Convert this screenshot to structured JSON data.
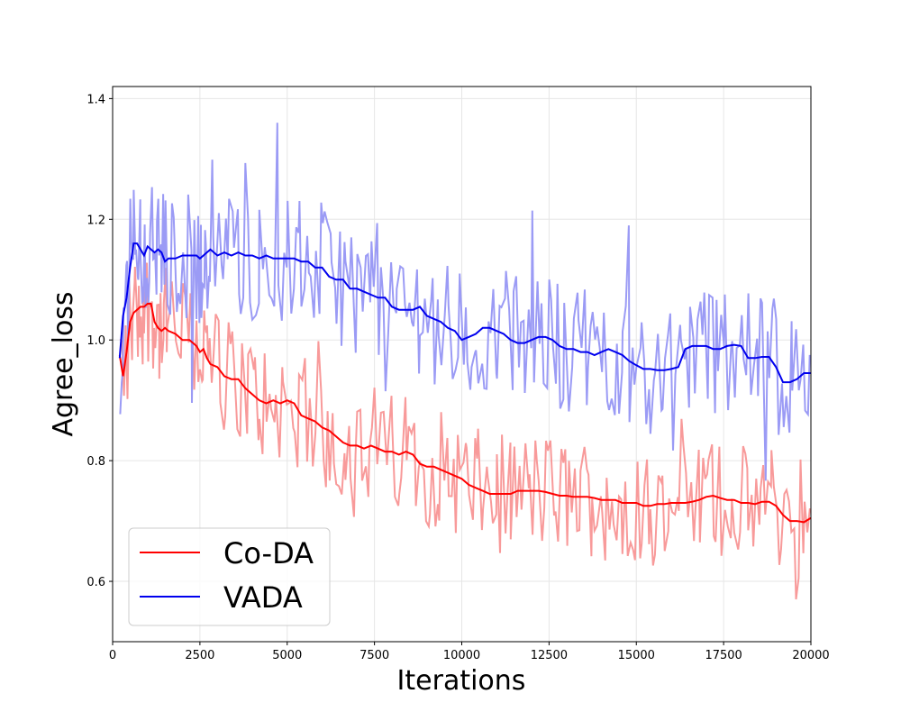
{
  "chart_data": {
    "type": "line",
    "title": "",
    "xlabel": "Iterations",
    "ylabel": "Agree_loss",
    "xlim": [
      0,
      20000
    ],
    "ylim": [
      0.5,
      1.42
    ],
    "xticks": [
      0,
      2500,
      5000,
      7500,
      10000,
      12500,
      15000,
      17500,
      20000
    ],
    "yticks": [
      0.6,
      0.8,
      1.0,
      1.2,
      1.4
    ],
    "xtick_labels": [
      "0",
      "2500",
      "5000",
      "7500",
      "10000",
      "12500",
      "15000",
      "17500",
      "20000"
    ],
    "ytick_labels": [
      "0.6",
      "0.8",
      "1.0",
      "1.2",
      "1.4"
    ],
    "grid": true,
    "legend": {
      "placement": "lower-left",
      "entries": [
        "Co-DA",
        "VADA"
      ]
    },
    "colors": {
      "coda": "#ff0000",
      "coda_raw": "#f89a9a",
      "vada": "#0000ee",
      "vada_raw": "#9b9bf5"
    },
    "series": [
      {
        "name": "Co-DA",
        "x": [
          200,
          300,
          400,
          500,
          600,
          700,
          800,
          900,
          1000,
          1100,
          1200,
          1300,
          1400,
          1500,
          1600,
          1800,
          2000,
          2200,
          2400,
          2500,
          2600,
          2700,
          2800,
          3000,
          3200,
          3400,
          3600,
          3800,
          4000,
          4200,
          4400,
          4600,
          4800,
          5000,
          5200,
          5400,
          5600,
          5800,
          6000,
          6200,
          6400,
          6600,
          6800,
          7000,
          7200,
          7400,
          7600,
          7800,
          8000,
          8200,
          8400,
          8600,
          8800,
          9000,
          9200,
          9400,
          9600,
          9800,
          10000,
          10200,
          10400,
          10600,
          10800,
          11000,
          11200,
          11400,
          11600,
          11800,
          12000,
          12200,
          12400,
          12600,
          12800,
          13000,
          13200,
          13400,
          13600,
          13800,
          14000,
          14200,
          14400,
          14600,
          14800,
          15000,
          15200,
          15400,
          15600,
          15800,
          16000,
          16200,
          16400,
          16600,
          16800,
          17000,
          17200,
          17400,
          17600,
          17800,
          18000,
          18200,
          18400,
          18600,
          18800,
          19000,
          19200,
          19400,
          19600,
          19800,
          20000
        ],
        "values": [
          0.975,
          0.94,
          0.98,
          1.03,
          1.045,
          1.05,
          1.055,
          1.055,
          1.06,
          1.06,
          1.03,
          1.02,
          1.015,
          1.02,
          1.015,
          1.01,
          1.0,
          1.0,
          0.99,
          0.98,
          0.985,
          0.97,
          0.96,
          0.955,
          0.94,
          0.935,
          0.935,
          0.92,
          0.91,
          0.9,
          0.895,
          0.9,
          0.895,
          0.9,
          0.895,
          0.875,
          0.87,
          0.865,
          0.855,
          0.85,
          0.84,
          0.83,
          0.825,
          0.825,
          0.82,
          0.825,
          0.82,
          0.815,
          0.815,
          0.81,
          0.815,
          0.81,
          0.795,
          0.79,
          0.79,
          0.785,
          0.78,
          0.775,
          0.77,
          0.76,
          0.755,
          0.75,
          0.745,
          0.745,
          0.745,
          0.745,
          0.75,
          0.75,
          0.75,
          0.75,
          0.748,
          0.745,
          0.742,
          0.742,
          0.74,
          0.74,
          0.74,
          0.738,
          0.735,
          0.735,
          0.735,
          0.73,
          0.73,
          0.73,
          0.725,
          0.725,
          0.728,
          0.728,
          0.73,
          0.73,
          0.73,
          0.732,
          0.735,
          0.74,
          0.742,
          0.738,
          0.735,
          0.735,
          0.73,
          0.73,
          0.728,
          0.732,
          0.732,
          0.725,
          0.71,
          0.7,
          0.7,
          0.698,
          0.705
        ]
      },
      {
        "name": "VADA",
        "x": [
          200,
          300,
          400,
          500,
          600,
          700,
          800,
          900,
          1000,
          1100,
          1200,
          1300,
          1400,
          1500,
          1600,
          1800,
          2000,
          2200,
          2400,
          2500,
          2600,
          2700,
          2800,
          3000,
          3200,
          3400,
          3600,
          3800,
          4000,
          4200,
          4400,
          4600,
          4800,
          5000,
          5200,
          5400,
          5600,
          5800,
          6000,
          6200,
          6400,
          6600,
          6800,
          7000,
          7200,
          7400,
          7600,
          7800,
          8000,
          8200,
          8400,
          8600,
          8800,
          9000,
          9200,
          9400,
          9600,
          9800,
          10000,
          10200,
          10400,
          10600,
          10800,
          11000,
          11200,
          11400,
          11600,
          11800,
          12000,
          12200,
          12400,
          12600,
          12800,
          13000,
          13200,
          13400,
          13600,
          13800,
          14000,
          14200,
          14400,
          14600,
          14800,
          15000,
          15200,
          15400,
          15600,
          15800,
          16000,
          16200,
          16400,
          16600,
          16800,
          17000,
          17200,
          17400,
          17600,
          17800,
          18000,
          18200,
          18400,
          18600,
          18800,
          19000,
          19200,
          19400,
          19600,
          19800,
          20000
        ],
        "values": [
          0.97,
          1.04,
          1.07,
          1.12,
          1.16,
          1.16,
          1.15,
          1.14,
          1.155,
          1.15,
          1.145,
          1.15,
          1.145,
          1.13,
          1.135,
          1.135,
          1.14,
          1.14,
          1.14,
          1.135,
          1.14,
          1.145,
          1.15,
          1.14,
          1.145,
          1.14,
          1.145,
          1.14,
          1.14,
          1.135,
          1.14,
          1.135,
          1.135,
          1.135,
          1.135,
          1.13,
          1.13,
          1.12,
          1.12,
          1.105,
          1.1,
          1.1,
          1.085,
          1.085,
          1.08,
          1.075,
          1.07,
          1.07,
          1.055,
          1.05,
          1.05,
          1.05,
          1.055,
          1.04,
          1.035,
          1.03,
          1.02,
          1.015,
          1.0,
          1.005,
          1.01,
          1.02,
          1.02,
          1.015,
          1.01,
          1.0,
          0.995,
          0.995,
          1.0,
          1.005,
          1.005,
          1.0,
          0.99,
          0.985,
          0.985,
          0.98,
          0.98,
          0.975,
          0.98,
          0.985,
          0.98,
          0.975,
          0.965,
          0.958,
          0.952,
          0.952,
          0.95,
          0.95,
          0.952,
          0.955,
          0.985,
          0.99,
          0.99,
          0.99,
          0.985,
          0.985,
          0.99,
          0.992,
          0.99,
          0.97,
          0.97,
          0.972,
          0.972,
          0.955,
          0.93,
          0.93,
          0.935,
          0.945,
          0.945
        ]
      }
    ]
  }
}
